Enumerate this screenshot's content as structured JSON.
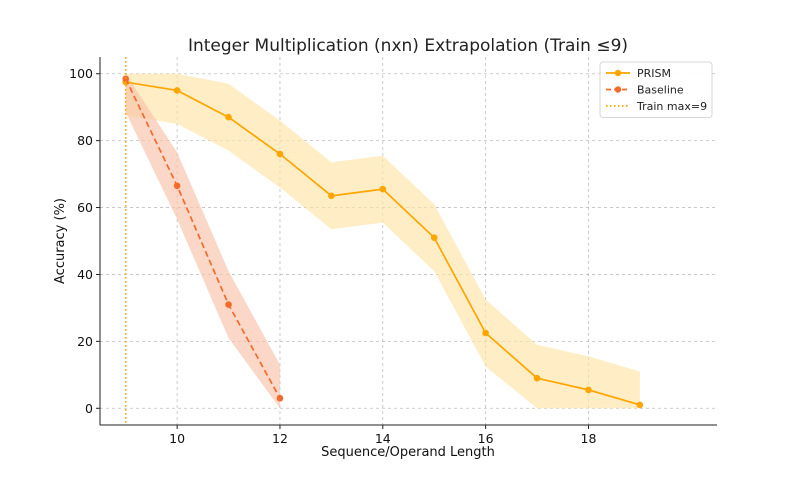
{
  "chart_data": {
    "type": "line",
    "title": "Integer Multiplication (nxn) Extrapolation (Train ≤9)",
    "xlabel": "Sequence/Operand Length",
    "ylabel": "Accuracy (%)",
    "xlim": [
      8.5,
      20.5
    ],
    "ylim": [
      -5,
      105
    ],
    "xticks": [
      10,
      12,
      14,
      16,
      18
    ],
    "yticks": [
      0,
      20,
      40,
      60,
      80,
      100
    ],
    "grid": true,
    "legend_position": "top-right",
    "series": [
      {
        "name": "PRISM",
        "color": "#FFA500",
        "band_color": "#FFE4A8",
        "linestyle": "solid",
        "x": [
          9,
          10,
          11,
          12,
          13,
          14,
          15,
          16,
          17,
          18,
          19
        ],
        "y": [
          97.5,
          95,
          87,
          76,
          63.5,
          65.5,
          51,
          22.5,
          9,
          5.5,
          1
        ],
        "lower": [
          87.5,
          85,
          77,
          66,
          53.5,
          55.5,
          41,
          12.5,
          0,
          0,
          0
        ],
        "upper": [
          100,
          100,
          97,
          86,
          73.5,
          75.5,
          61,
          32.5,
          19,
          15.5,
          11
        ]
      },
      {
        "name": "Baseline",
        "color": "#F26B2A",
        "band_color": "#F9C2AA",
        "linestyle": "dashed",
        "x": [
          9,
          10,
          11,
          12
        ],
        "y": [
          98.5,
          66.5,
          31,
          3
        ],
        "lower": [
          88.5,
          56.5,
          21,
          0
        ],
        "upper": [
          100,
          76.5,
          41,
          13
        ]
      }
    ],
    "vlines": [
      {
        "name": "Train max=9",
        "x": 9,
        "color": "#FFA500",
        "linestyle": "dotted"
      }
    ]
  }
}
